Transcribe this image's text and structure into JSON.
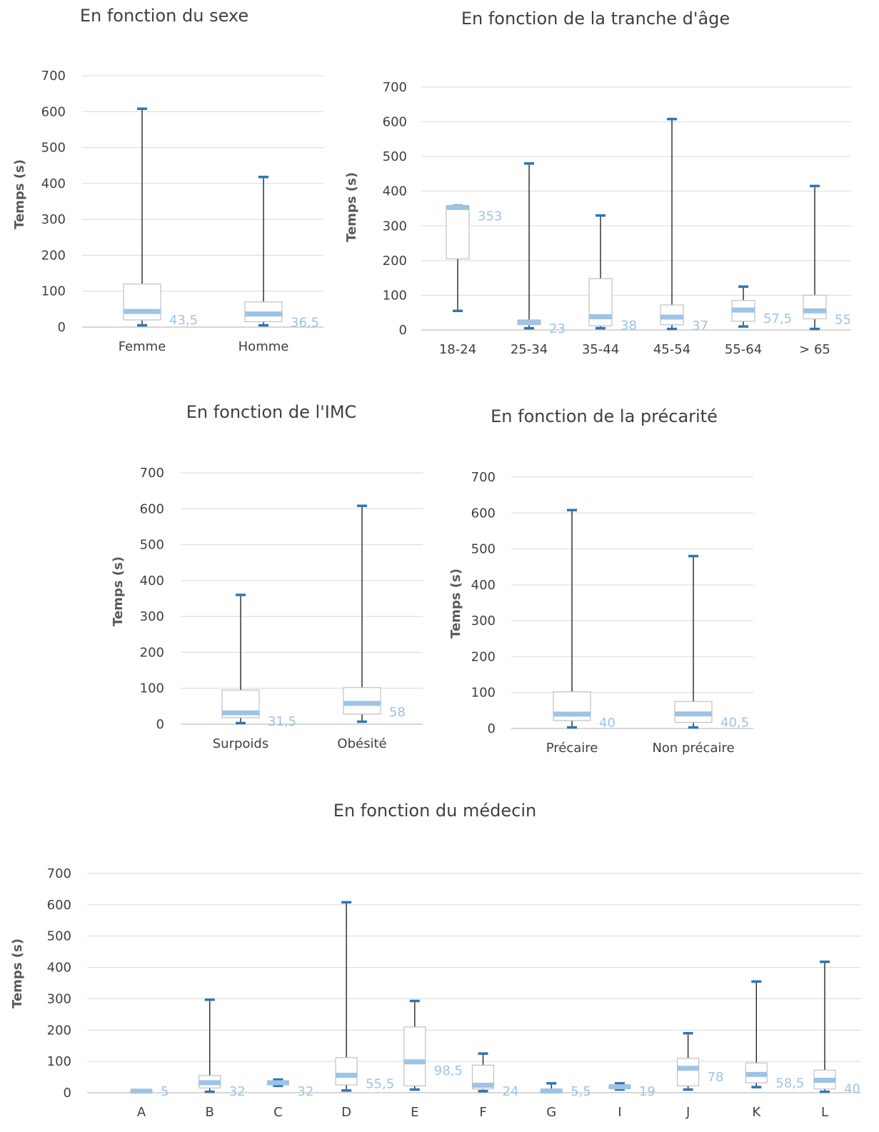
{
  "colors": {
    "median": "#9dc3e6",
    "median_label": "#9dc3e6",
    "whisker_cap": "#2e75b6",
    "box_border": "#c0c0c0",
    "gridline": "#d9d9d9"
  },
  "chart_data": [
    {
      "id": "sexe",
      "type": "boxplot",
      "title": "En fonction du sexe",
      "ylabel": "Temps (s)",
      "ylim": [
        0,
        700
      ],
      "yticks": [
        0,
        100,
        200,
        300,
        400,
        500,
        600,
        700
      ],
      "categories": [
        "Femme",
        "Homme"
      ],
      "boxes": [
        {
          "category": "Femme",
          "min": 5,
          "q1": 20,
          "median": 43.5,
          "q3": 120,
          "max": 608,
          "median_label": "43,5"
        },
        {
          "category": "Homme",
          "min": 5,
          "q1": 15,
          "median": 36.5,
          "q3": 70,
          "max": 418,
          "median_label": "36,5"
        }
      ]
    },
    {
      "id": "age",
      "type": "boxplot",
      "title": "En fonction de la tranche d'âge",
      "ylabel": "Temps (s)",
      "ylim": [
        0,
        700
      ],
      "yticks": [
        0,
        100,
        200,
        300,
        400,
        500,
        600,
        700
      ],
      "categories": [
        "18-24",
        "25-34",
        "35-44",
        "45-54",
        "55-64",
        "> 65"
      ],
      "boxes": [
        {
          "category": "18-24",
          "min": 55,
          "q1": 205,
          "median": 353,
          "q3": 358,
          "max": 358,
          "median_label": "353"
        },
        {
          "category": "25-34",
          "min": 5,
          "q1": 15,
          "median": 23,
          "q3": 28,
          "max": 480,
          "median_label": "23"
        },
        {
          "category": "35-44",
          "min": 5,
          "q1": 12,
          "median": 38,
          "q3": 148,
          "max": 330,
          "median_label": "38"
        },
        {
          "category": "45-54",
          "min": 3,
          "q1": 15,
          "median": 37,
          "q3": 72,
          "max": 608,
          "median_label": "37"
        },
        {
          "category": "55-64",
          "min": 10,
          "q1": 25,
          "median": 57.5,
          "q3": 85,
          "max": 125,
          "median_label": "57,5"
        },
        {
          "category": "> 65",
          "min": 3,
          "q1": 32,
          "median": 55,
          "q3": 100,
          "max": 415,
          "median_label": "55"
        }
      ]
    },
    {
      "id": "imc",
      "type": "boxplot",
      "title": "En fonction de l'IMC",
      "ylabel": "Temps (s)",
      "ylim": [
        0,
        700
      ],
      "yticks": [
        0,
        100,
        200,
        300,
        400,
        500,
        600,
        700
      ],
      "categories": [
        "Surpoids",
        "Obésité"
      ],
      "boxes": [
        {
          "category": "Surpoids",
          "min": 3,
          "q1": 18,
          "median": 31.5,
          "q3": 95,
          "max": 360,
          "median_label": "31,5"
        },
        {
          "category": "Obésité",
          "min": 7,
          "q1": 28,
          "median": 58,
          "q3": 102,
          "max": 608,
          "median_label": "58"
        }
      ]
    },
    {
      "id": "precarite",
      "type": "boxplot",
      "title": "En fonction de la précarité",
      "ylabel": "Temps (s)",
      "ylim": [
        0,
        700
      ],
      "yticks": [
        0,
        100,
        200,
        300,
        400,
        500,
        600,
        700
      ],
      "categories": [
        "Précaire",
        "Non précaire"
      ],
      "boxes": [
        {
          "category": "Précaire",
          "min": 3,
          "q1": 22,
          "median": 40,
          "q3": 102,
          "max": 608,
          "median_label": "40"
        },
        {
          "category": "Non précaire",
          "min": 3,
          "q1": 17,
          "median": 40.5,
          "q3": 75,
          "max": 480,
          "median_label": "40,5"
        }
      ]
    },
    {
      "id": "medecin",
      "type": "boxplot",
      "title": "En fonction du médecin",
      "ylabel": "Temps (s)",
      "ylim": [
        0,
        700
      ],
      "yticks": [
        0,
        100,
        200,
        300,
        400,
        500,
        600,
        700
      ],
      "categories": [
        "A",
        "B",
        "C",
        "D",
        "E",
        "F",
        "G",
        "I",
        "J",
        "K",
        "L"
      ],
      "boxes": [
        {
          "category": "A",
          "min": 3,
          "q1": 3,
          "median": 5,
          "q3": 8,
          "max": 8,
          "median_label": "5"
        },
        {
          "category": "B",
          "min": 3,
          "q1": 15,
          "median": 32,
          "q3": 55,
          "max": 297,
          "median_label": "32"
        },
        {
          "category": "C",
          "min": 22,
          "q1": 25,
          "median": 32,
          "q3": 38,
          "max": 42,
          "median_label": "32"
        },
        {
          "category": "D",
          "min": 7,
          "q1": 25,
          "median": 55.5,
          "q3": 112,
          "max": 608,
          "median_label": "55,5"
        },
        {
          "category": "E",
          "min": 10,
          "q1": 22,
          "median": 98.5,
          "q3": 210,
          "max": 293,
          "median_label": "98,5"
        },
        {
          "category": "F",
          "min": 5,
          "q1": 12,
          "median": 24,
          "q3": 88,
          "max": 125,
          "median_label": "24"
        },
        {
          "category": "G",
          "min": 3,
          "q1": 3,
          "median": 5.5,
          "q3": 12,
          "max": 30,
          "median_label": "5,5"
        },
        {
          "category": "I",
          "min": 10,
          "q1": 14,
          "median": 19,
          "q3": 25,
          "max": 30,
          "median_label": "19"
        },
        {
          "category": "J",
          "min": 10,
          "q1": 22,
          "median": 78,
          "q3": 110,
          "max": 190,
          "median_label": "78"
        },
        {
          "category": "K",
          "min": 18,
          "q1": 32,
          "median": 58.5,
          "q3": 95,
          "max": 355,
          "median_label": "58,5"
        },
        {
          "category": "L",
          "min": 3,
          "q1": 12,
          "median": 40,
          "q3": 72,
          "max": 418,
          "median_label": "40"
        }
      ]
    }
  ]
}
